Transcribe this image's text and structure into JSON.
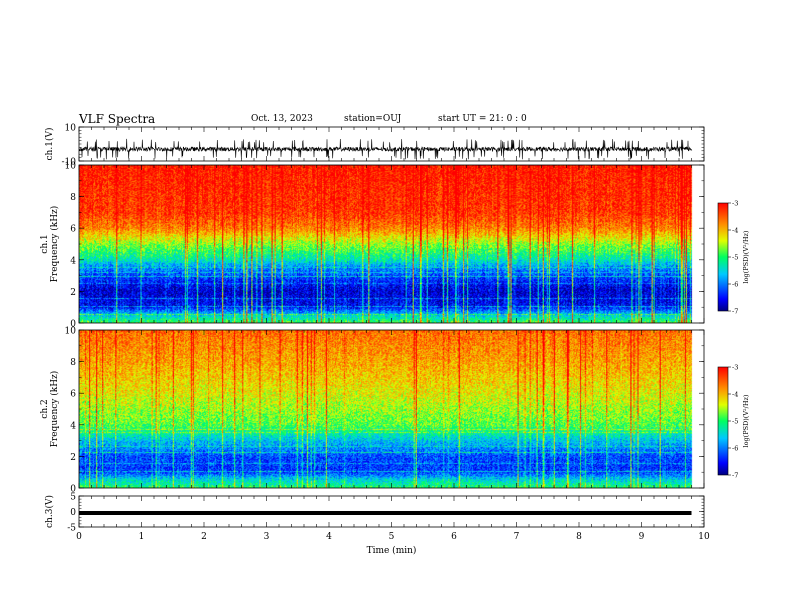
{
  "header": {
    "title": "VLF Spectra",
    "date": "Oct. 13, 2023",
    "station": "station=OUJ",
    "start": "start  UT  =   21: 0  : 0"
  },
  "chart_data": [
    {
      "panel": "ch1-waveform",
      "type": "line",
      "ylabel": "ch.1(V)",
      "ylim": [
        -10,
        10
      ],
      "yticks": [
        "10",
        "-10"
      ],
      "xlim": [
        0,
        10
      ],
      "trace_end_min": 9.8,
      "trace_level_V": -3,
      "trace_span_V": [
        -8,
        2
      ],
      "color": "#000000"
    },
    {
      "panel": "ch1-spectrogram",
      "type": "heatmap",
      "ylabel_top": "ch.1",
      "ylabel": "Frequency  (kHz)",
      "ylim": [
        0,
        10
      ],
      "yticks": [
        "0",
        "2",
        "4",
        "6",
        "8",
        "10"
      ],
      "xlim": [
        0,
        10
      ],
      "data_end_min": 9.8,
      "colorbar_label": "log(PSD)(V²/Hz)",
      "colorbar_range": [
        -7,
        -3
      ],
      "colorbar_ticks": [
        "-3",
        "-4",
        "-5",
        "-6",
        "-7"
      ],
      "band_profile": [
        {
          "f": 0.0,
          "psd": -4.9
        },
        {
          "f": 0.5,
          "psd": -5.6
        },
        {
          "f": 1.0,
          "psd": -6.5
        },
        {
          "f": 2.0,
          "psd": -6.7
        },
        {
          "f": 3.0,
          "psd": -6.2
        },
        {
          "f": 3.6,
          "psd": -5.8
        },
        {
          "f": 4.0,
          "psd": -5.3
        },
        {
          "f": 5.0,
          "psd": -4.6
        },
        {
          "f": 6.0,
          "psd": -3.7
        },
        {
          "f": 7.0,
          "psd": -3.3
        },
        {
          "f": 10.0,
          "psd": -3.1
        }
      ],
      "narrowband_lines_kHz": [
        0.5,
        1.0,
        1.5,
        2.5,
        2.9,
        3.2,
        3.5
      ]
    },
    {
      "panel": "ch2-spectrogram",
      "type": "heatmap",
      "ylabel_top": "ch.2",
      "ylabel": "Frequency  (kHz)",
      "ylim": [
        0,
        10
      ],
      "yticks": [
        "0",
        "2",
        "4",
        "6",
        "8",
        "10"
      ],
      "xlim": [
        0,
        10
      ],
      "data_end_min": 9.8,
      "colorbar_label": "log(PSD)(V²/Hz)",
      "colorbar_range": [
        -7,
        -3
      ],
      "colorbar_ticks": [
        "-3",
        "-4",
        "-5",
        "-6",
        "-7"
      ],
      "band_profile": [
        {
          "f": 0.0,
          "psd": -5.0
        },
        {
          "f": 0.5,
          "psd": -5.5
        },
        {
          "f": 1.0,
          "psd": -6.3
        },
        {
          "f": 2.0,
          "psd": -6.2
        },
        {
          "f": 3.0,
          "psd": -5.6
        },
        {
          "f": 4.0,
          "psd": -4.8
        },
        {
          "f": 6.0,
          "psd": -4.3
        },
        {
          "f": 8.0,
          "psd": -3.9
        },
        {
          "f": 10.0,
          "psd": -3.6
        }
      ],
      "narrowband_lines_kHz": [
        1.0,
        1.5,
        2.2,
        2.6,
        3.5,
        3.7
      ]
    },
    {
      "panel": "ch3-waveform",
      "type": "line",
      "ylabel": "ch.3(V)",
      "ylim": [
        -5,
        5
      ],
      "yticks": [
        "5",
        "0",
        "-5"
      ],
      "xlim": [
        0,
        10
      ],
      "xticks": [
        "0",
        "1",
        "2",
        "3",
        "4",
        "5",
        "6",
        "7",
        "8",
        "9",
        "10"
      ],
      "xlabel": "Time  (min)",
      "trace_end_min": 9.8,
      "trace_level_V": -0.5,
      "color": "#000000"
    }
  ]
}
